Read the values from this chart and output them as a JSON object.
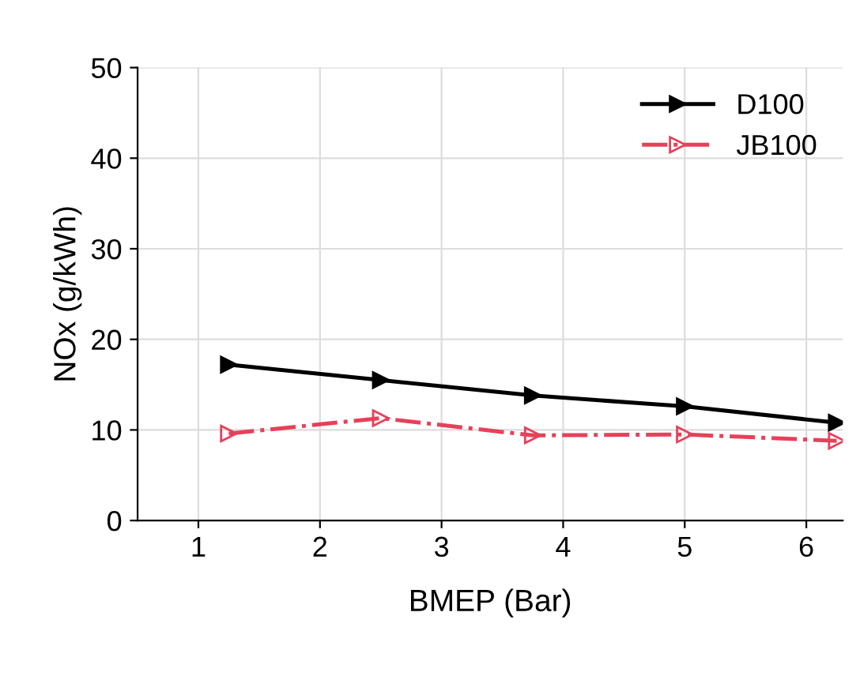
{
  "chart_data": {
    "type": "line",
    "xlabel": "BMEP (Bar)",
    "ylabel": "NOx (g/kWh)",
    "x": [
      1.25,
      2.5,
      3.75,
      5,
      6.25
    ],
    "series": [
      {
        "name": "D100",
        "color": "#000000",
        "values": [
          17.2,
          15.5,
          13.8,
          12.6,
          10.8
        ],
        "line_style": "solid"
      },
      {
        "name": "JB100",
        "color": "#e8405a",
        "values": [
          9.6,
          11.3,
          9.4,
          9.5,
          8.8
        ],
        "line_style": "dashdot"
      }
    ],
    "xlim": [
      0.5,
      6.3
    ],
    "xticks": [
      1,
      2,
      3,
      4,
      5,
      6
    ],
    "ylim": [
      0,
      50
    ],
    "yticks": [
      0,
      10,
      20,
      30,
      40,
      50
    ],
    "grid": true,
    "legend": "top right",
    "marker": "triangle"
  }
}
